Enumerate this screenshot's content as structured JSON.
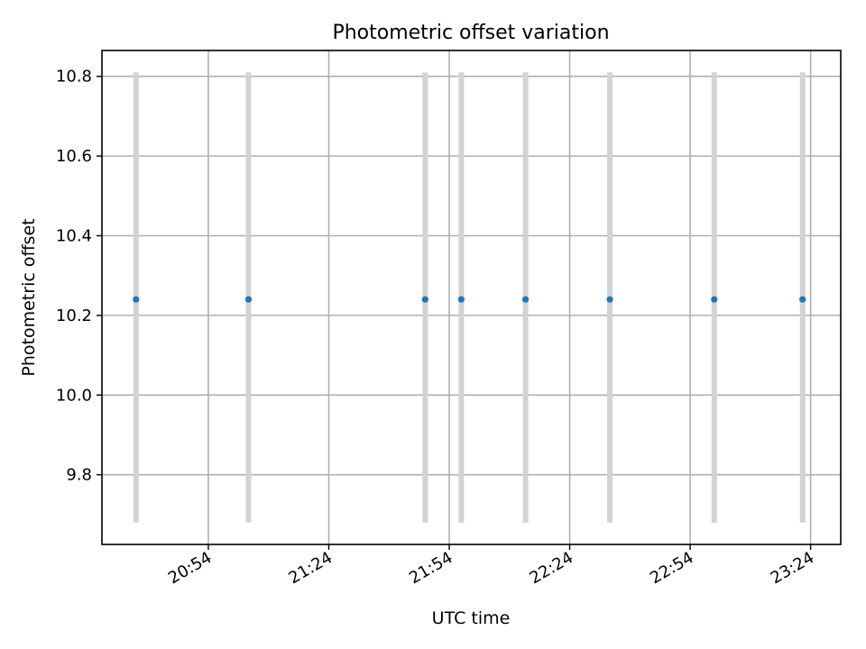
{
  "chart_data": {
    "type": "scatter",
    "title": "Photometric offset variation",
    "xlabel": "UTC time",
    "ylabel": "Photometric offset",
    "xlim": [
      "20:27:30",
      "23:31:30"
    ],
    "ylim": [
      9.625,
      10.865
    ],
    "grid": true,
    "x_ticks": [
      "20:54",
      "21:24",
      "21:54",
      "22:24",
      "22:54",
      "23:24"
    ],
    "y_ticks": [
      "9.8",
      "10.0",
      "10.2",
      "10.4",
      "10.6",
      "10.8"
    ],
    "series": [
      {
        "x": [
          "20:36",
          "21:04",
          "21:48",
          "21:57",
          "22:13",
          "22:34",
          "23:00",
          "23:22"
        ],
        "y": [
          10.24,
          10.24,
          10.24,
          10.24,
          10.24,
          10.24,
          10.24,
          10.24
        ],
        "error_low": [
          9.68,
          9.68,
          9.68,
          9.68,
          9.68,
          9.68,
          9.68,
          9.68
        ],
        "error_high": [
          10.81,
          10.81,
          10.81,
          10.81,
          10.81,
          10.81,
          10.81,
          10.81
        ],
        "marker_color": "#1f77b4",
        "errorbar_color": "#d3d3d3"
      }
    ]
  }
}
